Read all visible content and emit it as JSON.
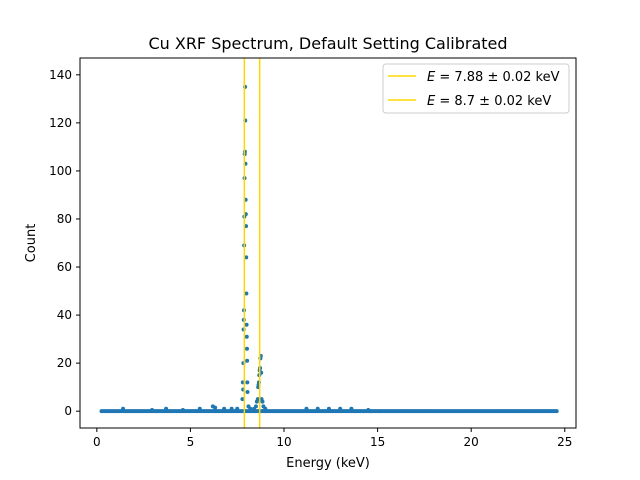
{
  "chart_data": {
    "type": "scatter",
    "title": "Cu XRF Spectrum, Default Setting Calibrated",
    "xlabel": "Energy (keV)",
    "ylabel": "Count",
    "xlim": [
      -0.9,
      25.6
    ],
    "ylim": [
      -7,
      147
    ],
    "xticks": [
      0,
      5,
      10,
      15,
      20,
      25
    ],
    "yticks": [
      0,
      20,
      40,
      60,
      80,
      100,
      120,
      140
    ],
    "grid": false,
    "legend_position": "top-right",
    "colors": {
      "points": "#1f77b4",
      "vlines": "#ffd700"
    },
    "vlines": [
      {
        "x": 7.88,
        "label_prefix": "E",
        "label_value": " = 7.88 ± 0.02 keV"
      },
      {
        "x": 8.7,
        "label_prefix": "E",
        "label_value": " = 8.7 ± 0.02 keV"
      }
    ],
    "baseline": {
      "x_start": 0.25,
      "x_end": 24.6,
      "step": 0.08,
      "value": 0
    },
    "points": [
      [
        1.4,
        1
      ],
      [
        2.95,
        0.5
      ],
      [
        3.7,
        1
      ],
      [
        4.6,
        0.5
      ],
      [
        5.5,
        1
      ],
      [
        6.2,
        2
      ],
      [
        6.32,
        1.5
      ],
      [
        6.8,
        1
      ],
      [
        7.2,
        1
      ],
      [
        7.5,
        1
      ],
      [
        7.82,
        9
      ],
      [
        7.83,
        20
      ],
      [
        7.84,
        34
      ],
      [
        7.85,
        38
      ],
      [
        7.86,
        42
      ],
      [
        7.87,
        69
      ],
      [
        7.88,
        81
      ],
      [
        7.89,
        97
      ],
      [
        7.9,
        107
      ],
      [
        7.91,
        108
      ],
      [
        7.92,
        135
      ],
      [
        7.93,
        121
      ],
      [
        7.94,
        103
      ],
      [
        7.95,
        88
      ],
      [
        7.96,
        82
      ],
      [
        7.97,
        77
      ],
      [
        7.98,
        64
      ],
      [
        7.99,
        49
      ],
      [
        8.0,
        36
      ],
      [
        8.01,
        31
      ],
      [
        8.02,
        26
      ],
      [
        8.03,
        21
      ],
      [
        8.04,
        12
      ],
      [
        8.05,
        8
      ],
      [
        7.8,
        12
      ],
      [
        7.78,
        5
      ],
      [
        8.1,
        2
      ],
      [
        8.2,
        1
      ],
      [
        8.4,
        1
      ],
      [
        8.5,
        2
      ],
      [
        8.55,
        4
      ],
      [
        8.6,
        5
      ],
      [
        8.62,
        10
      ],
      [
        8.64,
        11
      ],
      [
        8.66,
        12
      ],
      [
        8.68,
        15
      ],
      [
        8.7,
        17
      ],
      [
        8.72,
        18
      ],
      [
        8.74,
        22
      ],
      [
        8.76,
        23
      ],
      [
        8.78,
        16
      ],
      [
        8.8,
        5
      ],
      [
        8.85,
        4
      ],
      [
        8.9,
        2
      ],
      [
        9.0,
        1
      ],
      [
        11.2,
        1
      ],
      [
        11.8,
        1
      ],
      [
        12.4,
        1
      ],
      [
        13.0,
        1
      ],
      [
        13.6,
        1
      ],
      [
        14.5,
        0.5
      ]
    ]
  }
}
